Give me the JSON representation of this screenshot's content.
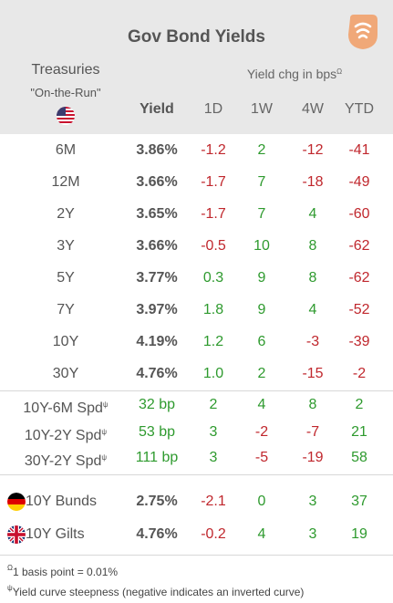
{
  "header": {
    "title": "Gov Bond Yields",
    "subtitle_left": "Treasuries",
    "subtitle_left2": "\"On-the-Run\"",
    "yield_chg_label": "Yield chg in bps",
    "yield_chg_mark": "Ω"
  },
  "columns": [
    "Yield",
    "1D",
    "1W",
    "4W",
    "YTD"
  ],
  "colors": {
    "negative": "#c0272d",
    "positive": "#2e9a2e",
    "header_bg": "#e8e8e8",
    "logo": "#f0a878"
  },
  "chart_data": {
    "type": "table",
    "title": "Gov Bond Yields",
    "columns": [
      "Yield",
      "1D",
      "1W",
      "4W",
      "YTD"
    ],
    "treasuries": [
      {
        "label": "6M",
        "yield": "3.86%",
        "d1": "-1.2",
        "w1": "2",
        "w4": "-12",
        "ytd": "-41"
      },
      {
        "label": "12M",
        "yield": "3.66%",
        "d1": "-1.7",
        "w1": "7",
        "w4": "-18",
        "ytd": "-49"
      },
      {
        "label": "2Y",
        "yield": "3.65%",
        "d1": "-1.7",
        "w1": "7",
        "w4": "4",
        "ytd": "-60"
      },
      {
        "label": "3Y",
        "yield": "3.66%",
        "d1": "-0.5",
        "w1": "10",
        "w4": "8",
        "ytd": "-62"
      },
      {
        "label": "5Y",
        "yield": "3.77%",
        "d1": "0.3",
        "w1": "9",
        "w4": "8",
        "ytd": "-62"
      },
      {
        "label": "7Y",
        "yield": "3.97%",
        "d1": "1.8",
        "w1": "9",
        "w4": "4",
        "ytd": "-52"
      },
      {
        "label": "10Y",
        "yield": "4.19%",
        "d1": "1.2",
        "w1": "6",
        "w4": "-3",
        "ytd": "-39"
      },
      {
        "label": "30Y",
        "yield": "4.76%",
        "d1": "1.0",
        "w1": "2",
        "w4": "-15",
        "ytd": "-2"
      }
    ],
    "spreads": [
      {
        "label": "10Y-6M Spd",
        "mark": "ψ",
        "yield": "32 bp",
        "d1": "2",
        "w1": "4",
        "w4": "8",
        "ytd": "2"
      },
      {
        "label": "10Y-2Y Spd",
        "mark": "ψ",
        "yield": "53 bp",
        "d1": "3",
        "w1": "-2",
        "w4": "-7",
        "ytd": "21"
      },
      {
        "label": "30Y-2Y Spd",
        "mark": "ψ",
        "yield": "111 bp",
        "d1": "3",
        "w1": "-5",
        "w4": "-19",
        "ytd": "58"
      }
    ],
    "sovereigns": [
      {
        "label": "10Y Bunds",
        "flag": "germany-flag-icon",
        "yield": "2.75%",
        "d1": "-2.1",
        "w1": "0",
        "w4": "3",
        "ytd": "37"
      },
      {
        "label": "10Y Gilts",
        "flag": "uk-flag-icon",
        "yield": "4.76%",
        "d1": "-0.2",
        "w1": "4",
        "w4": "3",
        "ytd": "19"
      }
    ]
  },
  "footnotes": {
    "note1_mark": "Ω",
    "note1": "1 basis point = 0.01%",
    "note2_mark": "ψ",
    "note2": "Yield curve steepness (negative indicates an inverted curve)"
  },
  "icons": {
    "logo": "wifi-signal-logo-icon",
    "us_flag": "us-flag-icon"
  }
}
